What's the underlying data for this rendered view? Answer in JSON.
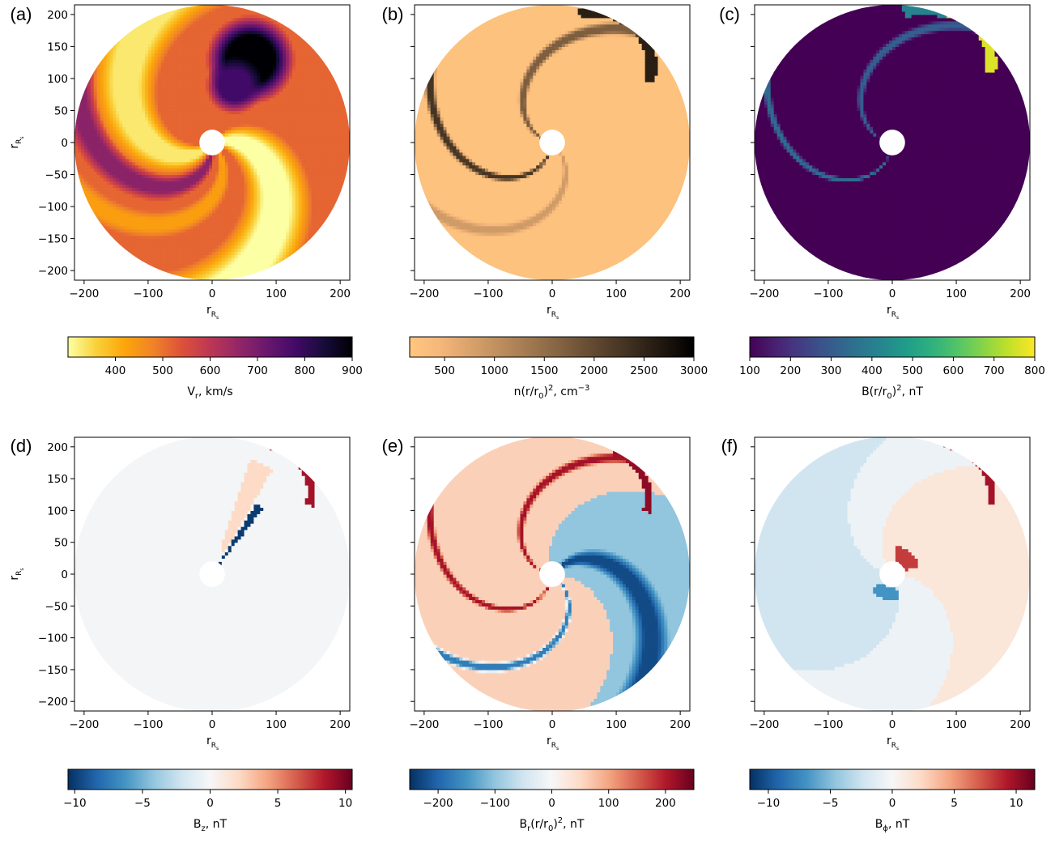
{
  "chart_data": [
    {
      "type": "heatmap",
      "panel": "(a)",
      "xlabel": "r",
      "xlabel_sub": "R",
      "xlabel_subsub": "s",
      "ylabel": "r",
      "ylabel_sub": "R",
      "ylabel_subsub": "s",
      "xlim": [
        -215,
        215
      ],
      "ylim": [
        -215,
        215
      ],
      "xticks": [
        -200,
        -100,
        0,
        100,
        200
      ],
      "yticks": [
        200,
        150,
        100,
        50,
        0,
        -50,
        -100,
        -150,
        -200
      ],
      "show_yticklabels": true,
      "domain_radius": 215,
      "inner_radius": 20,
      "colormap": "inferno_r",
      "colorbar": {
        "label_main": "V",
        "label_sub": "r",
        "label_rest": ", km/s",
        "range": [
          300,
          900
        ],
        "ticks": [
          400,
          500,
          600,
          700,
          800,
          900
        ]
      },
      "background_value": 0.36,
      "features": [
        {
          "kind": "arm",
          "value": 0.0,
          "a0": 0.35,
          "a1": 1.55,
          "w0": 0.3,
          "w1": 0.2,
          "k": 0.8
        },
        {
          "kind": "arm",
          "value": 0.05,
          "a0": 4.0,
          "a1": 5.0,
          "w0": 0.2,
          "w1": 0.3,
          "k": 0.9
        },
        {
          "kind": "arm",
          "value": 0.62,
          "a0": 4.8,
          "a1": 5.3,
          "w0": 0.1,
          "w1": 0.15,
          "k": 0.9
        },
        {
          "kind": "arm",
          "value": 0.22,
          "a0": 5.5,
          "a1": 5.9,
          "w0": 0.1,
          "w1": 0.12,
          "k": 0.9
        },
        {
          "kind": "blob",
          "value": 1.0,
          "cx": 60,
          "cy": 130,
          "r": 70
        },
        {
          "kind": "blob",
          "value": 0.8,
          "cx": 35,
          "cy": 90,
          "r": 45
        }
      ]
    },
    {
      "type": "heatmap",
      "panel": "(b)",
      "xlabel": "r",
      "xlabel_sub": "R",
      "xlabel_subsub": "s",
      "xlim": [
        -215,
        215
      ],
      "ylim": [
        -215,
        215
      ],
      "xticks": [
        -200,
        -100,
        0,
        100,
        200
      ],
      "yticks": [
        200,
        150,
        100,
        50,
        0,
        -50,
        -100,
        -150,
        -200
      ],
      "show_yticklabels": false,
      "domain_radius": 215,
      "inner_radius": 20,
      "colormap": "copper_r",
      "colorbar": {
        "label_main": "n(r/r",
        "label_sub": "0",
        "label_rest": ")",
        "label_sup": "2",
        "label_tail": ", cm",
        "label_tail_sup": "−3",
        "range": [
          150,
          3000
        ],
        "ticks": [
          500,
          1000,
          1500,
          2000,
          2500,
          3000
        ]
      },
      "background_value": 0.03,
      "features": [
        {
          "kind": "ring",
          "value": 0.85,
          "cx": 70,
          "cy": 120,
          "r": 85,
          "w": 9,
          "a0": -0.3,
          "a1": 1.9
        },
        {
          "kind": "arm",
          "value": 0.55,
          "a0": 2.9,
          "a1": 3.1,
          "w0": 0.05,
          "w1": 0.06,
          "k": 0.9
        },
        {
          "kind": "arm",
          "value": 0.75,
          "a0": 4.6,
          "a1": 4.75,
          "w0": 0.04,
          "w1": 0.05,
          "k": 0.9
        },
        {
          "kind": "arm",
          "value": 0.25,
          "a0": 5.6,
          "a1": 5.8,
          "w0": 0.05,
          "w1": 0.06,
          "k": 0.9
        }
      ]
    },
    {
      "type": "heatmap",
      "panel": "(c)",
      "xlabel": "r",
      "xlabel_sub": "R",
      "xlabel_subsub": "s",
      "xlim": [
        -215,
        215
      ],
      "ylim": [
        -215,
        215
      ],
      "xticks": [
        -200,
        -100,
        0,
        100,
        200
      ],
      "yticks": [
        200,
        150,
        100,
        50,
        0,
        -50,
        -100,
        -150,
        -200
      ],
      "show_yticklabels": false,
      "domain_radius": 215,
      "inner_radius": 20,
      "colormap": "viridis",
      "colorbar": {
        "label_main": "B(r/r",
        "label_sub": "0",
        "label_rest": ")",
        "label_sup": "2",
        "label_tail": ", nT",
        "range": [
          100,
          800
        ],
        "ticks": [
          100,
          200,
          300,
          400,
          500,
          600,
          700,
          800
        ]
      },
      "background_value": 0.0,
      "features": [
        {
          "kind": "ring",
          "value": 0.95,
          "cx": 75,
          "cy": 125,
          "r": 80,
          "w": 8,
          "a0": -0.2,
          "a1": 1.6
        },
        {
          "kind": "ring",
          "value": 0.45,
          "cx": 50,
          "cy": 110,
          "r": 100,
          "w": 10,
          "a0": 1.2,
          "a1": 1.9
        },
        {
          "kind": "arm",
          "value": 0.3,
          "a0": 2.95,
          "a1": 3.1,
          "w0": 0.04,
          "w1": 0.05,
          "k": 0.9
        },
        {
          "kind": "arm",
          "value": 0.35,
          "a0": 4.65,
          "a1": 4.75,
          "w0": 0.03,
          "w1": 0.04,
          "k": 0.9
        }
      ]
    },
    {
      "type": "heatmap",
      "panel": "(d)",
      "xlabel": "r",
      "xlabel_sub": "R",
      "xlabel_subsub": "s",
      "ylabel": "r",
      "ylabel_sub": "R",
      "ylabel_subsub": "s",
      "xlim": [
        -215,
        215
      ],
      "ylim": [
        -215,
        215
      ],
      "xticks": [
        -200,
        -100,
        0,
        100,
        200
      ],
      "yticks": [
        200,
        150,
        100,
        50,
        0,
        -50,
        -100,
        -150,
        -200
      ],
      "show_yticklabels": true,
      "domain_radius": 215,
      "inner_radius": 20,
      "colormap": "RdBu_r",
      "colorbar": {
        "label_main": "B",
        "label_sub": "z",
        "label_rest": ", nT",
        "range": [
          -10.5,
          10.5
        ],
        "ticks": [
          -10,
          -5,
          0,
          5,
          10
        ]
      },
      "background_value": 0.49,
      "features": [
        {
          "kind": "wedge",
          "value": 0.02,
          "a0": 0.92,
          "a1": 1.02,
          "rmin": 20,
          "rmax": 130
        },
        {
          "kind": "ring",
          "value": 0.92,
          "cx": 80,
          "cy": 130,
          "r": 75,
          "w": 7,
          "a0": -0.3,
          "a1": 1.5
        },
        {
          "kind": "wedge",
          "value": 0.6,
          "a0": 1.05,
          "a1": 1.25,
          "rmin": 40,
          "rmax": 190
        }
      ]
    },
    {
      "type": "heatmap",
      "panel": "(e)",
      "xlabel": "r",
      "xlabel_sub": "R",
      "xlabel_subsub": "s",
      "xlim": [
        -215,
        215
      ],
      "ylim": [
        -215,
        215
      ],
      "xticks": [
        -200,
        -100,
        0,
        100,
        200
      ],
      "yticks": [
        200,
        150,
        100,
        50,
        0,
        -50,
        -100,
        -150,
        -200
      ],
      "show_yticklabels": false,
      "domain_radius": 215,
      "inner_radius": 20,
      "colormap": "RdBu_r",
      "colorbar": {
        "label_main": "B",
        "label_sub": "r",
        "label_rest": "(r/r",
        "label_sub2": "0",
        "label_rest2": ")",
        "label_sup": "2",
        "label_tail": ", nT",
        "range": [
          -250,
          250
        ],
        "ticks": [
          -200,
          -100,
          0,
          100,
          200
        ]
      },
      "background_value": 0.62,
      "features": [
        {
          "kind": "half",
          "value": 0.3,
          "a0": -0.4,
          "a1": 1.9
        },
        {
          "kind": "arm",
          "value": 0.05,
          "a0": 0.9,
          "a1": 1.5,
          "w0": 0.08,
          "w1": 0.1,
          "k": 0.8
        },
        {
          "kind": "ring",
          "value": 0.95,
          "cx": 75,
          "cy": 120,
          "r": 75,
          "w": 6,
          "a0": -0.3,
          "a1": 1.3
        },
        {
          "kind": "arm",
          "value": 0.92,
          "a0": 2.95,
          "a1": 3.1,
          "w0": 0.04,
          "w1": 0.05,
          "k": 0.9
        },
        {
          "kind": "arm",
          "value": 0.92,
          "a0": 4.6,
          "a1": 4.72,
          "w0": 0.03,
          "w1": 0.04,
          "k": 0.9
        },
        {
          "kind": "arm",
          "value": 0.15,
          "a0": 5.7,
          "a1": 5.85,
          "w0": 0.04,
          "w1": 0.05,
          "k": 0.9
        }
      ]
    },
    {
      "type": "heatmap",
      "panel": "(f)",
      "xlabel": "r",
      "xlabel_sub": "R",
      "xlabel_subsub": "s",
      "xlim": [
        -215,
        215
      ],
      "ylim": [
        -215,
        215
      ],
      "xticks": [
        -200,
        -100,
        0,
        100,
        200
      ],
      "yticks": [
        200,
        150,
        100,
        50,
        0,
        -50,
        -100,
        -150,
        -200
      ],
      "show_yticklabels": false,
      "domain_radius": 215,
      "inner_radius": 20,
      "colormap": "RdBu_r",
      "colorbar": {
        "label_main": "B",
        "label_sub": "ϕ",
        "label_rest": ", nT",
        "range": [
          -11.5,
          11.5
        ],
        "ticks": [
          -10,
          -5,
          0,
          5,
          10
        ]
      },
      "background_value": 0.47,
      "features": [
        {
          "kind": "half",
          "value": 0.56,
          "a0": -0.3,
          "a1": 2.2
        },
        {
          "kind": "half",
          "value": 0.4,
          "a0": 2.9,
          "a1": 5.2
        },
        {
          "kind": "ring",
          "value": 0.92,
          "cx": 75,
          "cy": 125,
          "r": 80,
          "w": 6,
          "a0": -0.2,
          "a1": 1.5
        },
        {
          "kind": "wedge",
          "value": 0.85,
          "a0": 0.3,
          "a1": 1.4,
          "rmin": 20,
          "rmax": 45
        },
        {
          "kind": "wedge",
          "value": 0.2,
          "a0": 3.8,
          "a1": 5.0,
          "rmin": 20,
          "rmax": 40
        }
      ]
    }
  ]
}
